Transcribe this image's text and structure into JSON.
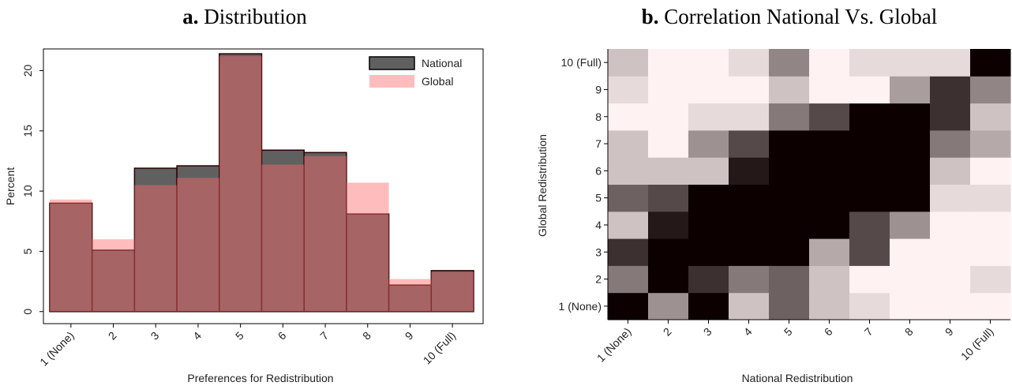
{
  "chart_data": [
    {
      "type": "bar",
      "panel": "a.",
      "title": "Distribution",
      "x_label": "Preferences for Redistribution",
      "y_label": "Percent",
      "categories": [
        "1 (None)",
        "2",
        "3",
        "4",
        "5",
        "6",
        "7",
        "8",
        "9",
        "10 (Full)"
      ],
      "series": [
        {
          "name": "National",
          "color": "#606060",
          "values": [
            9.0,
            5.1,
            11.9,
            12.1,
            21.4,
            13.4,
            13.2,
            8.1,
            2.2,
            3.4
          ]
        },
        {
          "name": "Global",
          "color": "#ff6b6b",
          "values": [
            9.3,
            6.0,
            10.5,
            11.1,
            21.2,
            12.2,
            12.9,
            10.7,
            2.7,
            3.3
          ]
        }
      ],
      "ylim": [
        -1,
        21.8
      ],
      "yticks": [
        0,
        5,
        10,
        15,
        20
      ],
      "legend": "top-right"
    },
    {
      "type": "heatmap",
      "panel": "b.",
      "title": "Correlation National Vs. Global",
      "x_label": "National Redistribution",
      "y_label": "Global Redistribution",
      "x": [
        "1 (None)",
        "2",
        "3",
        "4",
        "5",
        "6",
        "7",
        "8",
        "9",
        "10 (Full)"
      ],
      "y": [
        "1 (None)",
        "2",
        "3",
        "4",
        "5",
        "6",
        "7",
        "8",
        "9",
        "10 (Full)"
      ],
      "values": [
        [
          100,
          40,
          100,
          20,
          60,
          20,
          10,
          0,
          0,
          0
        ],
        [
          50,
          100,
          80,
          50,
          60,
          20,
          0,
          0,
          0,
          10
        ],
        [
          80,
          100,
          100,
          100,
          100,
          30,
          70,
          0,
          0,
          0
        ],
        [
          20,
          90,
          100,
          100,
          100,
          100,
          70,
          40,
          0,
          0
        ],
        [
          60,
          70,
          100,
          100,
          100,
          100,
          100,
          100,
          10,
          10
        ],
        [
          20,
          20,
          20,
          90,
          100,
          100,
          100,
          100,
          20,
          0
        ],
        [
          20,
          0,
          40,
          70,
          100,
          100,
          100,
          100,
          50,
          30
        ],
        [
          0,
          0,
          10,
          10,
          50,
          70,
          100,
          100,
          80,
          20
        ],
        [
          10,
          0,
          0,
          0,
          20,
          0,
          0,
          35,
          80,
          45
        ],
        [
          20,
          0,
          0,
          10,
          45,
          0,
          10,
          10,
          10,
          100
        ]
      ],
      "color_range": [
        0,
        100
      ]
    }
  ]
}
